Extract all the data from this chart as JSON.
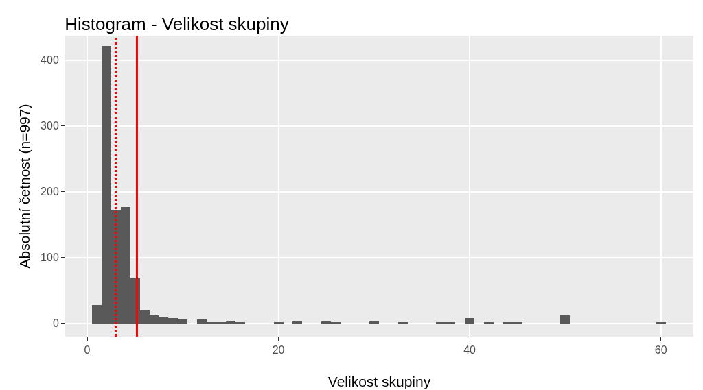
{
  "chart_data": {
    "type": "histogram",
    "title": "Histogram - Velikost skupiny",
    "xlabel": "Velikost skupiny",
    "ylabel": "Absolutní četnost (n=997)",
    "bins": [
      0.5,
      1.5,
      2.5,
      3.5,
      4.5,
      5.5,
      6.5,
      7.5,
      8.5,
      9.5,
      10.5,
      11.5,
      12.5,
      13.5,
      14.5,
      15.5,
      16.5,
      17.5,
      18.5,
      19.5,
      20.5,
      21.5,
      22.5,
      23.5,
      24.5,
      25.5,
      26.5,
      27.5,
      28.5,
      29.5,
      30.5,
      31.5,
      32.5,
      33.5,
      34.5,
      35.5,
      36.5,
      37.5,
      38.5,
      39.5,
      40.5,
      41.5,
      42.5,
      43.5,
      44.5,
      45.5,
      46.5,
      47.5,
      48.5,
      49.5,
      50.5,
      51.5,
      52.5,
      53.5,
      54.5,
      55.5,
      56.5,
      57.5,
      58.5,
      59.5,
      60.5
    ],
    "values": [
      28,
      421,
      173,
      177,
      69,
      20,
      12,
      9,
      8,
      6,
      0,
      6,
      1,
      1,
      3,
      2,
      0,
      0,
      0,
      2,
      0,
      3,
      0,
      0,
      3,
      1,
      0,
      0,
      0,
      3,
      0,
      0,
      2,
      0,
      0,
      0,
      1,
      2,
      0,
      8,
      0,
      2,
      0,
      1,
      2,
      0,
      0,
      0,
      0,
      12,
      0,
      0,
      0,
      0,
      0,
      0,
      0,
      0,
      0,
      2
    ],
    "color": "#595959",
    "xlim": [
      -2.3,
      63.4
    ],
    "xticks": [
      0,
      20,
      40,
      60
    ],
    "ylim": [
      -20,
      437
    ],
    "yticks": [
      0,
      100,
      200,
      300,
      400
    ],
    "ref_lines": [
      {
        "axis": "x",
        "value": 3,
        "color": "#ff0000",
        "line_style": "dotted"
      },
      {
        "axis": "x",
        "value": 5.2,
        "color": "#ff0000",
        "line_style": "solid"
      }
    ],
    "grid": true
  }
}
